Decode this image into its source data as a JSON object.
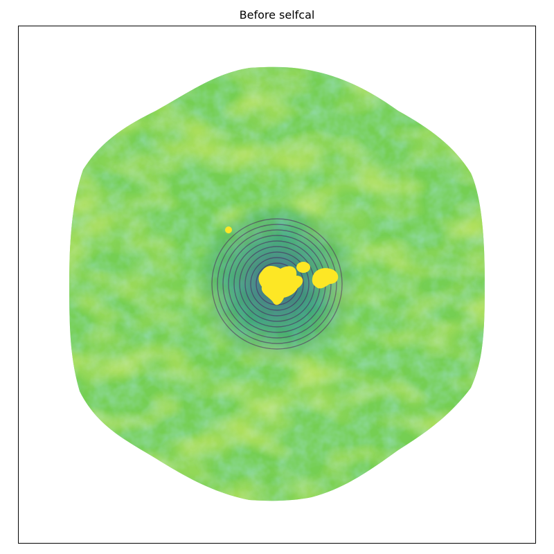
{
  "figure": {
    "title": "Before selfcal"
  },
  "colors": {
    "background": "#ffffff",
    "frame": "#000000",
    "colormap": [
      "#440154",
      "#3b528b",
      "#21918c",
      "#5ec962",
      "#a0da39",
      "#fde725"
    ]
  }
}
